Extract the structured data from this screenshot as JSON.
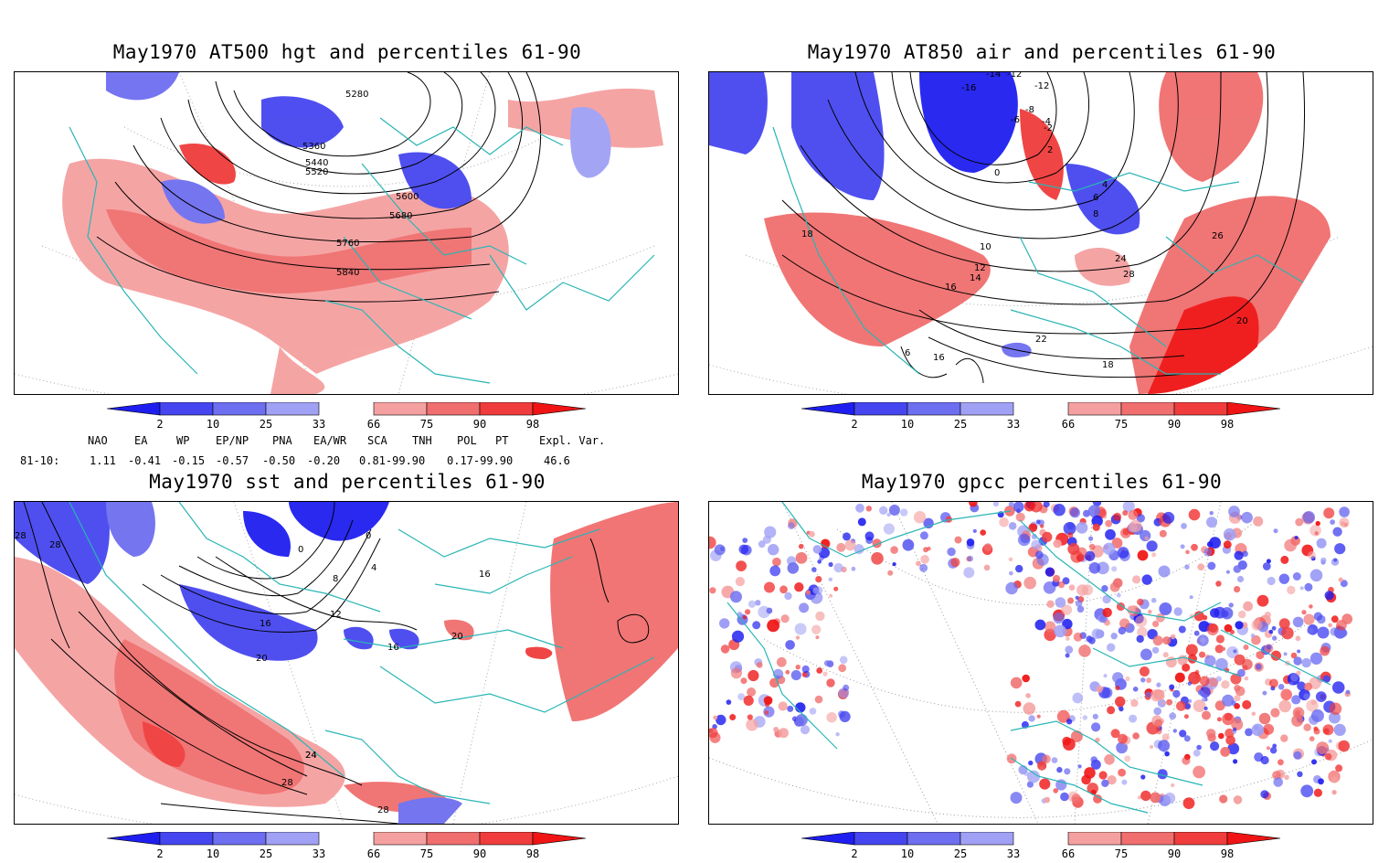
{
  "panels": [
    {
      "id": "at500",
      "title": "May1970 AT500 hgt and percentiles 61-90",
      "contour_labels": [
        "5280",
        "5360",
        "5440",
        "5520",
        "5600",
        "5680",
        "5760",
        "5840"
      ]
    },
    {
      "id": "at850",
      "title": "May1970 AT850 air and percentiles 61-90",
      "contour_labels": [
        "-14",
        "-12",
        "-16",
        "-12",
        "-8",
        "-6",
        "-4",
        "-2",
        "0",
        "2",
        "4",
        "6",
        "8",
        "10",
        "12",
        "14",
        "16",
        "18",
        "20",
        "22",
        "24",
        "26",
        "28",
        "16",
        "18",
        "6"
      ]
    },
    {
      "id": "sst",
      "title": "May1970 sst and percentiles 61-90",
      "contour_labels": [
        "28",
        "28",
        "24",
        "0",
        "0",
        "4",
        "8",
        "12",
        "16",
        "20",
        "16",
        "20",
        "24",
        "28",
        "28",
        "16"
      ]
    },
    {
      "id": "gpcc",
      "title": "May1970 gpcc percentiles 61-90",
      "contour_labels": []
    }
  ],
  "colorbar": {
    "labels": [
      "2",
      "10",
      "25",
      "33",
      "66",
      "75",
      "90",
      "98"
    ],
    "colors": {
      "deep_blue": "#1e1ef0",
      "blue": "#4646f0",
      "mid_blue": "#6e6ef0",
      "light_blue": "#a0a0f5",
      "light_red": "#f5a0a0",
      "red": "#f06e6e",
      "strong_red": "#f03c3c",
      "deep_red": "#f01414"
    }
  },
  "teleconnections": {
    "row_label": "81-10:",
    "headers": [
      "NAO",
      "EA",
      "WP",
      "EP/NP",
      "PNA",
      "EA/WR",
      "SCA",
      "TNH",
      "POL",
      "PT",
      "Expl. Var."
    ],
    "values": [
      "1.11",
      "-0.41",
      "-0.15",
      "-0.57",
      "-0.50",
      "-0.20",
      "0.81-99.90",
      "0.17-99.90",
      "46.6"
    ]
  },
  "colors": {
    "coast": "#2ab5b5",
    "contour": "#000000",
    "grid": "#9a9a9a"
  }
}
